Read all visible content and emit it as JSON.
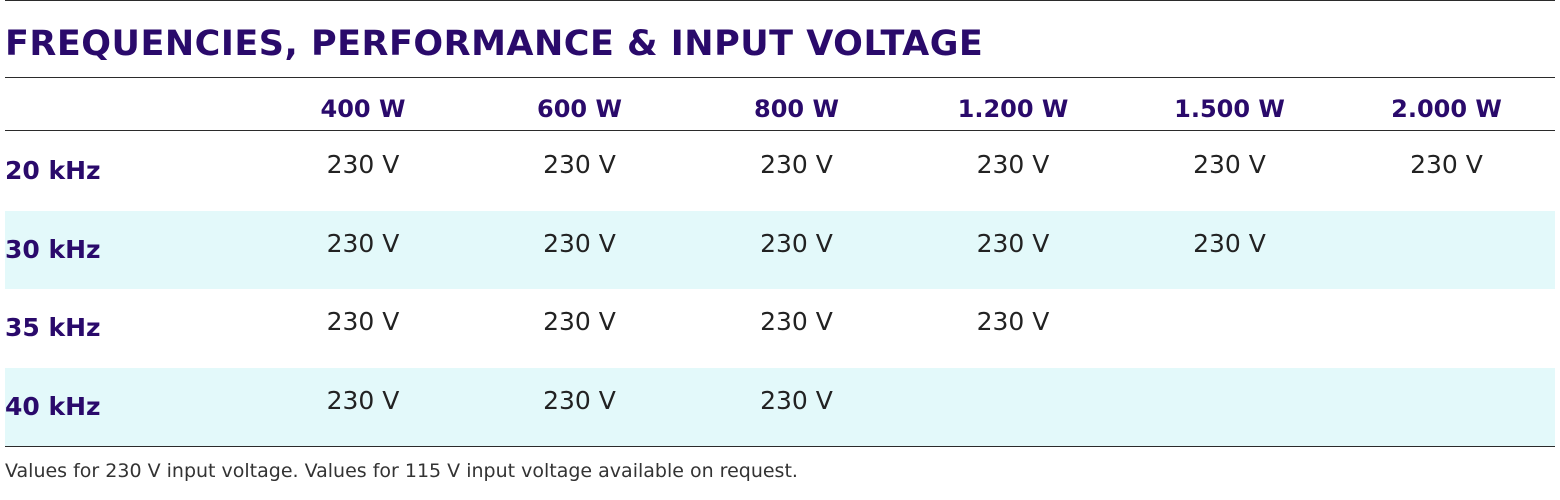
{
  "title": "FREQUENCIES, PERFORMANCE & INPUT VOLTAGE",
  "columns": [
    "400 W",
    "600 W",
    "800 W",
    "1.200 W",
    "1.500 W",
    "2.000 W"
  ],
  "rows": [
    {
      "label": "20 kHz",
      "cells": [
        "230 V",
        "230 V",
        "230 V",
        "230 V",
        "230 V",
        "230 V"
      ]
    },
    {
      "label": "30 kHz",
      "cells": [
        "230 V",
        "230 V",
        "230 V",
        "230 V",
        "230 V",
        ""
      ]
    },
    {
      "label": "35 kHz",
      "cells": [
        "230 V",
        "230 V",
        "230 V",
        "230 V",
        "",
        ""
      ]
    },
    {
      "label": "40 kHz",
      "cells": [
        "230 V",
        "230 V",
        "230 V",
        "",
        "",
        ""
      ]
    }
  ],
  "footnote": "Values for 230 V input voltage. Values for 115 V input voltage available on request.",
  "colors": {
    "heading": "#2a0a6b",
    "row_shade": "#e3f9fa",
    "rule": "#2b2b2b"
  }
}
